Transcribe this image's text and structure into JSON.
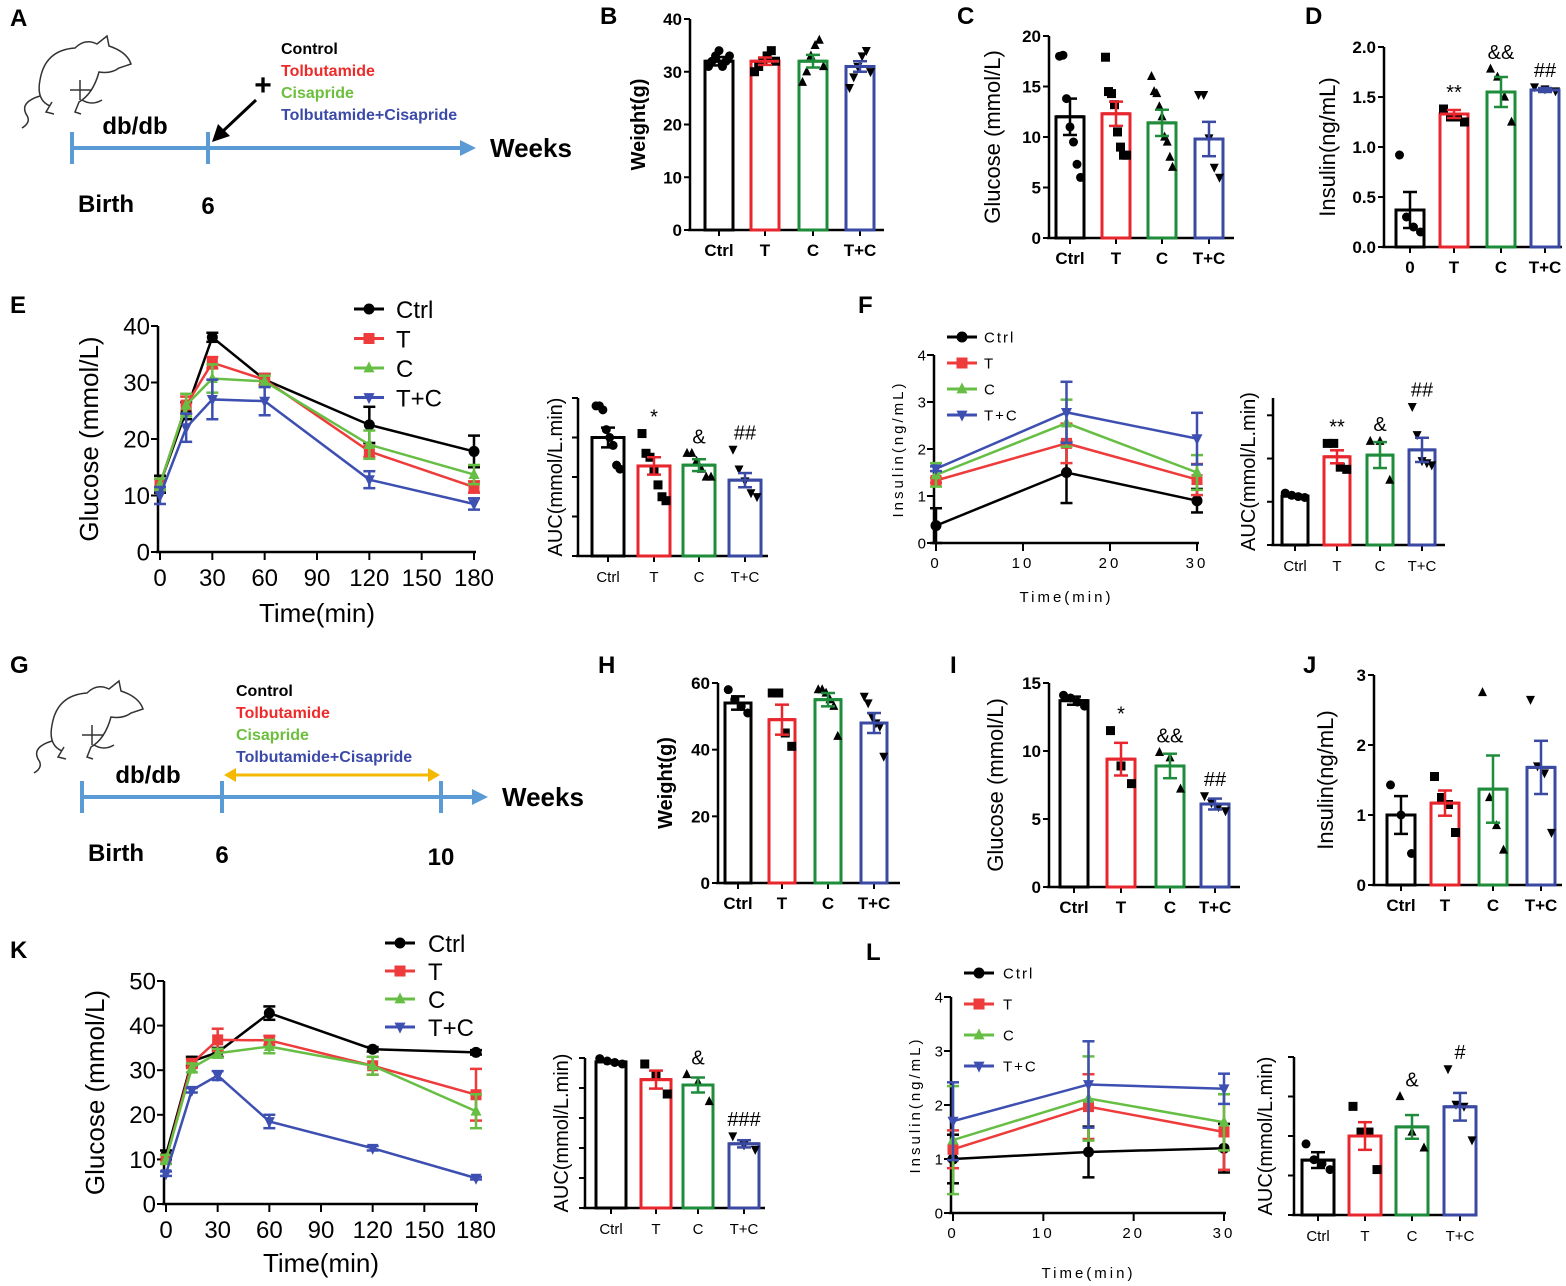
{
  "panel_labels": [
    "A",
    "B",
    "C",
    "D",
    "E",
    "F",
    "G",
    "H",
    "I",
    "J",
    "K",
    "L"
  ],
  "line_colors": {
    "Ctrl": "#000000",
    "T": "#ee3b3b",
    "C": "#66bf44",
    "T+C": "#3d4fb0"
  },
  "bar_colors": {
    "Ctrl": "#000000",
    "T": "#e8262d",
    "C": "#1e8c3a",
    "T+C": "#3a4aa3",
    "0": "#000000"
  },
  "markers": {
    "Ctrl": "circle",
    "0": "circle",
    "T": "square",
    "C": "triangle-up",
    "T+C": "triangle-down"
  },
  "timeline_colors": {
    "axis": "#5b9bd5",
    "treatment_arrow": "#f5b800"
  },
  "panel_A": {
    "stage": "db/db",
    "start": "Birth",
    "week_mark": "6",
    "axis_label": "Weeks",
    "plus": "+",
    "legend": [
      {
        "label": "Control",
        "color": "#000000"
      },
      {
        "label": "Tolbutamide",
        "color": "#ee2a2a"
      },
      {
        "label": "Cisapride",
        "color": "#6cbf3c"
      },
      {
        "label": "Tolbutamide+Cisapride",
        "color": "#3b4aa8"
      }
    ]
  },
  "panel_G": {
    "stage": "db/db",
    "start": "Birth",
    "week_mark": "6",
    "end_mark": "10",
    "axis_label": "Weeks",
    "legend": [
      {
        "label": "Control",
        "color": "#000000"
      },
      {
        "label": "Tolbutamide",
        "color": "#ee2a2a"
      },
      {
        "label": "Cisapride",
        "color": "#6cbf3c"
      },
      {
        "label": "Tolbutamide+Cisapride",
        "color": "#3b4aa8"
      }
    ]
  },
  "chart_data": [
    {
      "panel": "B",
      "type": "bar",
      "ylabel": "Weight(g)",
      "ylim": [
        0,
        40
      ],
      "yticks": [
        "0",
        "10",
        "20",
        "30",
        "40"
      ],
      "ytick_labels_shown": true,
      "categories": [
        "Ctrl",
        "T",
        "C",
        "T+C"
      ],
      "bars": [
        {
          "mean": 32,
          "sem": 0.8,
          "points": [
            31,
            32,
            33,
            34,
            31,
            32,
            33
          ],
          "annotation": ""
        },
        {
          "mean": 32,
          "sem": 0.7,
          "points": [
            30,
            31,
            32,
            33,
            34,
            32
          ],
          "annotation": ""
        },
        {
          "mean": 32,
          "sem": 1.2,
          "points": [
            28,
            30,
            33,
            35,
            36,
            31
          ],
          "annotation": ""
        },
        {
          "mean": 31,
          "sem": 1.0,
          "points": [
            27,
            29,
            31,
            33,
            34,
            30
          ],
          "annotation": ""
        }
      ]
    },
    {
      "panel": "C",
      "type": "bar",
      "ylabel": "Glucose (mmol/L)",
      "ylim": [
        0,
        20
      ],
      "yticks": [
        "0",
        "5",
        "10",
        "15",
        "20"
      ],
      "ytick_labels_shown": true,
      "categories": [
        "Ctrl",
        "T",
        "C",
        "T+C"
      ],
      "bars": [
        {
          "mean": 12,
          "sem": 1.8,
          "points": [
            18,
            18.1,
            13.8,
            11,
            9.5,
            7.3,
            6
          ],
          "annotation": ""
        },
        {
          "mean": 12.3,
          "sem": 1.2,
          "points": [
            17.9,
            14.5,
            14.3,
            13.2,
            10.5,
            9,
            8.2,
            8.2
          ],
          "annotation": ""
        },
        {
          "mean": 11.4,
          "sem": 1.3,
          "points": [
            16,
            14.5,
            14.3,
            13,
            12,
            10,
            9.5,
            8,
            7
          ],
          "annotation": ""
        },
        {
          "mean": 9.8,
          "sem": 1.7,
          "points": [
            14.2,
            14.2,
            9.9,
            7,
            6
          ],
          "annotation": ""
        }
      ]
    },
    {
      "panel": "D",
      "type": "bar",
      "ylabel": "Insulin(ng/mL)",
      "ylim": [
        0,
        2
      ],
      "yticks": [
        "0.0",
        "0.5",
        "1.0",
        "1.5",
        "2.0"
      ],
      "ytick_labels_shown": true,
      "categories": [
        "0",
        "T",
        "C",
        "T+C"
      ],
      "bars": [
        {
          "mean": 0.37,
          "sem": 0.18,
          "points": [
            0.92,
            0.3,
            0.2,
            0.15
          ],
          "annotation": ""
        },
        {
          "mean": 1.33,
          "sem": 0.04,
          "points": [
            1.38,
            1.3,
            1.3,
            1.25
          ],
          "annotation": "**"
        },
        {
          "mean": 1.55,
          "sem": 0.15,
          "points": [
            1.78,
            1.7,
            1.5,
            1.25
          ],
          "annotation": "&&"
        },
        {
          "mean": 1.57,
          "sem": 0.02,
          "points": [
            1.6,
            1.58,
            1.56
          ],
          "annotation": "##"
        }
      ]
    },
    {
      "panel": "E",
      "type": "line",
      "ylabel": "Glucose (mmol/L)",
      "xlabel": "Time(min)",
      "ylim": [
        0,
        40
      ],
      "xlim": [
        0,
        180
      ],
      "yticks": [
        "0",
        "10",
        "20",
        "30",
        "40"
      ],
      "xticks": [
        "0",
        "30",
        "60",
        "90",
        "120",
        "150",
        "180"
      ],
      "x": [
        0,
        15,
        30,
        60,
        120,
        180
      ],
      "series": [
        {
          "name": "Ctrl",
          "y": [
            12,
            25,
            38,
            30.5,
            22.5,
            17.8
          ],
          "err": [
            1.5,
            1.5,
            0.8,
            1,
            3.2,
            2.8
          ]
        },
        {
          "name": "T",
          "y": [
            12,
            26,
            33.5,
            30.5,
            17.8,
            11.5
          ],
          "err": [
            1,
            1.5,
            1,
            1,
            1,
            1
          ]
        },
        {
          "name": "C",
          "y": [
            12,
            26,
            30.7,
            30.2,
            19,
            13.7
          ],
          "err": [
            1,
            2,
            2.5,
            1,
            2.5,
            1.7
          ]
        },
        {
          "name": "T+C",
          "y": [
            10,
            22,
            27,
            26.7,
            12.8,
            8.5
          ],
          "err": [
            1.5,
            2.5,
            3.5,
            2.5,
            1.5,
            1
          ]
        }
      ]
    },
    {
      "panel": "E",
      "type": "bar",
      "ylabel": "AUC(mmol/L.min)",
      "ylim": [
        0,
        4
      ],
      "yticks": [
        "0",
        "1",
        "2",
        "3",
        "4"
      ],
      "ytick_labels_shown": false,
      "categories": [
        "Ctrl",
        "T",
        "C",
        "T+C"
      ],
      "bars": [
        {
          "mean": 3.0,
          "sem": 0.25,
          "points": [
            3.8,
            3.8,
            3.7,
            3.2,
            3.0,
            2.8,
            2.3,
            2.2
          ],
          "annotation": ""
        },
        {
          "mean": 2.28,
          "sem": 0.22,
          "points": [
            3.1,
            2.6,
            2.5,
            2.2,
            1.8,
            1.5,
            1.4
          ],
          "annotation": "*"
        },
        {
          "mean": 2.3,
          "sem": 0.15,
          "points": [
            2.6,
            2.6,
            2.4,
            2.2,
            2.0,
            2.0
          ],
          "annotation": "&"
        },
        {
          "mean": 1.92,
          "sem": 0.18,
          "points": [
            2.7,
            2.2,
            1.9,
            1.6,
            1.5
          ],
          "annotation": "##"
        }
      ]
    },
    {
      "panel": "F",
      "type": "line",
      "ylabel": "Insulin(ng/mL)",
      "xlabel": "Time(min)",
      "ylim": [
        0,
        4
      ],
      "xlim": [
        0,
        30
      ],
      "yticks": [
        "0",
        "1",
        "2",
        "3",
        "4"
      ],
      "xticks": [
        "0",
        "10",
        "20",
        "30"
      ],
      "x": [
        0,
        15,
        30
      ],
      "series": [
        {
          "name": "Ctrl",
          "y": [
            0.37,
            1.5,
            0.9
          ],
          "err": [
            0.37,
            0.65,
            0.25
          ]
        },
        {
          "name": "T",
          "y": [
            1.33,
            2.12,
            1.35
          ],
          "err": [
            0.05,
            0.42,
            0.33
          ]
        },
        {
          "name": "C",
          "y": [
            1.45,
            2.55,
            1.5
          ],
          "err": [
            0.25,
            0.5,
            0.37
          ]
        },
        {
          "name": "T+C",
          "y": [
            1.58,
            2.78,
            2.22
          ],
          "err": [
            0.05,
            0.65,
            0.55
          ]
        }
      ]
    },
    {
      "panel": "F",
      "type": "bar",
      "ylabel": "AUC(mmol/L.min)",
      "ylim": [
        0,
        3.4
      ],
      "yticks": [
        "0",
        "1",
        "2",
        "3"
      ],
      "ytick_labels_shown": false,
      "categories": [
        "Ctrl",
        "T",
        "C",
        "T+C"
      ],
      "bars": [
        {
          "mean": 1.13,
          "sem": 0.03,
          "points": [
            1.2,
            1.15,
            1.12,
            1.1
          ],
          "annotation": ""
        },
        {
          "mean": 2.04,
          "sem": 0.15,
          "points": [
            2.35,
            2.35,
            1.8,
            1.75
          ],
          "annotation": "**"
        },
        {
          "mean": 2.08,
          "sem": 0.3,
          "points": [
            2.4,
            2.4,
            1.5
          ],
          "annotation": "&"
        },
        {
          "mean": 2.2,
          "sem": 0.28,
          "points": [
            3.2,
            2.55,
            1.95,
            1.9,
            1.85
          ],
          "annotation": "##"
        }
      ]
    },
    {
      "panel": "H",
      "type": "bar",
      "ylabel": "Weight(g)",
      "ylim": [
        0,
        60
      ],
      "yticks": [
        "0",
        "20",
        "40",
        "60"
      ],
      "ytick_labels_shown": true,
      "categories": [
        "Ctrl",
        "T",
        "C",
        "T+C"
      ],
      "bars": [
        {
          "mean": 54,
          "sem": 2,
          "points": [
            58,
            55,
            53,
            51
          ],
          "annotation": ""
        },
        {
          "mean": 49,
          "sem": 4.5,
          "points": [
            57,
            57,
            45,
            41
          ],
          "annotation": ""
        },
        {
          "mean": 55,
          "sem": 2,
          "points": [
            58,
            58,
            57,
            55,
            53,
            44
          ],
          "annotation": ""
        },
        {
          "mean": 48,
          "sem": 3,
          "points": [
            56,
            54,
            50,
            48,
            47,
            38
          ],
          "annotation": ""
        }
      ]
    },
    {
      "panel": "I",
      "type": "bar",
      "ylabel": "Glucose (mmol/L)",
      "ylim": [
        0,
        15
      ],
      "yticks": [
        "0",
        "5",
        "10",
        "15"
      ],
      "ytick_labels_shown": true,
      "categories": [
        "Ctrl",
        "T",
        "C",
        "T+C"
      ],
      "bars": [
        {
          "mean": 13.7,
          "sem": 0.3,
          "points": [
            14.1,
            13.9,
            13.6,
            13.3
          ],
          "annotation": ""
        },
        {
          "mean": 9.4,
          "sem": 1.2,
          "points": [
            11.5,
            8.9,
            7.6
          ],
          "annotation": "*"
        },
        {
          "mean": 8.9,
          "sem": 0.9,
          "points": [
            9.9,
            9.5,
            7.2
          ],
          "annotation": "&&"
        },
        {
          "mean": 6.1,
          "sem": 0.4,
          "points": [
            6.7,
            6.2,
            5.9,
            5.6
          ],
          "annotation": "##"
        }
      ]
    },
    {
      "panel": "J",
      "type": "bar",
      "ylabel": "Insulin(ng/mL)",
      "ylim": [
        0,
        3
      ],
      "yticks": [
        "0",
        "1",
        "2",
        "3"
      ],
      "ytick_labels_shown": true,
      "categories": [
        "Ctrl",
        "T",
        "C",
        "T+C"
      ],
      "bars": [
        {
          "mean": 1.0,
          "sem": 0.27,
          "points": [
            1.43,
            1.0,
            0.45
          ],
          "annotation": ""
        },
        {
          "mean": 1.17,
          "sem": 0.18,
          "points": [
            1.55,
            1.25,
            1.15,
            0.75
          ],
          "annotation": ""
        },
        {
          "mean": 1.37,
          "sem": 0.48,
          "points": [
            2.75,
            1.25,
            0.85,
            0.5
          ],
          "annotation": ""
        },
        {
          "mean": 1.68,
          "sem": 0.38,
          "points": [
            2.65,
            1.7,
            1.6,
            0.75
          ],
          "annotation": ""
        }
      ]
    },
    {
      "panel": "K",
      "type": "line",
      "ylabel": "Glucose (mmol/L)",
      "xlabel": "Time(min)",
      "ylim": [
        0,
        50
      ],
      "xlim": [
        0,
        180
      ],
      "yticks": [
        "0",
        "10",
        "20",
        "30",
        "40",
        "50"
      ],
      "xticks": [
        "0",
        "30",
        "60",
        "90",
        "120",
        "150",
        "180"
      ],
      "x": [
        0,
        15,
        30,
        60,
        120,
        180
      ],
      "series": [
        {
          "name": "Ctrl",
          "y": [
            11,
            32,
            34,
            42.8,
            34.7,
            34
          ],
          "err": [
            1,
            1,
            1,
            1.5,
            0.5,
            0.5
          ]
        },
        {
          "name": "T",
          "y": [
            10,
            31.5,
            36.8,
            36.7,
            31,
            24.5
          ],
          "err": [
            1,
            1,
            2.5,
            1,
            2,
            5.8
          ]
        },
        {
          "name": "C",
          "y": [
            10,
            30.5,
            33.8,
            35.3,
            31,
            20.8
          ],
          "err": [
            1,
            1,
            1,
            1.5,
            2,
            3.8
          ]
        },
        {
          "name": "T+C",
          "y": [
            6.8,
            25.5,
            28.8,
            18.5,
            12.5,
            5.8
          ],
          "err": [
            0.5,
            0.5,
            1,
            1.5,
            0.5,
            0.3
          ]
        }
      ]
    },
    {
      "panel": "K",
      "type": "bar",
      "ylabel": "AUC(mmol/L.min)",
      "ylim": [
        0,
        5
      ],
      "yticks": [
        "0",
        "1",
        "2",
        "3",
        "4",
        "5"
      ],
      "ytick_labels_shown": false,
      "categories": [
        "Ctrl",
        "T",
        "C",
        "T+C"
      ],
      "bars": [
        {
          "mean": 4.87,
          "sem": 0.05,
          "points": [
            4.98,
            4.9,
            4.85,
            4.8
          ],
          "annotation": ""
        },
        {
          "mean": 4.28,
          "sem": 0.3,
          "points": [
            4.8,
            4.4,
            3.8
          ],
          "annotation": ""
        },
        {
          "mean": 4.1,
          "sem": 0.25,
          "points": [
            4.45,
            4.2,
            3.55
          ],
          "annotation": "&"
        },
        {
          "mean": 2.14,
          "sem": 0.12,
          "points": [
            2.4,
            2.1,
            1.95
          ],
          "annotation": "###"
        }
      ]
    },
    {
      "panel": "L",
      "type": "line",
      "ylabel": "Insulin(ng/mL)",
      "xlabel": "Time(min)",
      "ylim": [
        0,
        4
      ],
      "xlim": [
        0,
        30
      ],
      "yticks": [
        "0",
        "1",
        "2",
        "3",
        "4"
      ],
      "xticks": [
        "0",
        "10",
        "20",
        "30"
      ],
      "x": [
        0,
        15,
        30
      ],
      "series": [
        {
          "name": "Ctrl",
          "y": [
            1.0,
            1.13,
            1.2
          ],
          "err": [
            0.45,
            0.47,
            0.45
          ]
        },
        {
          "name": "T",
          "y": [
            1.18,
            1.97,
            1.5
          ],
          "err": [
            0.35,
            0.6,
            0.7
          ]
        },
        {
          "name": "C",
          "y": [
            1.35,
            2.12,
            1.68
          ],
          "err": [
            1.0,
            0.78,
            0.52
          ]
        },
        {
          "name": "T+C",
          "y": [
            1.7,
            2.38,
            2.3
          ],
          "err": [
            0.72,
            0.8,
            0.28
          ]
        }
      ]
    },
    {
      "panel": "L",
      "type": "bar",
      "ylabel": "AUC(mmol/L.min)",
      "ylim": [
        0,
        4
      ],
      "yticks": [
        "0",
        "1",
        "2",
        "3",
        "4"
      ],
      "ytick_labels_shown": false,
      "categories": [
        "Ctrl",
        "T",
        "C",
        "T+C"
      ],
      "bars": [
        {
          "mean": 1.39,
          "sem": 0.2,
          "points": [
            1.8,
            1.4,
            1.3,
            1.15
          ],
          "annotation": ""
        },
        {
          "mean": 2.0,
          "sem": 0.35,
          "points": [
            2.75,
            2.1,
            2.1,
            1.15
          ],
          "annotation": ""
        },
        {
          "mean": 2.23,
          "sem": 0.3,
          "points": [
            3.0,
            2.1,
            1.7
          ],
          "annotation": "&"
        },
        {
          "mean": 2.74,
          "sem": 0.35,
          "points": [
            3.7,
            2.8,
            2.75,
            1.9
          ],
          "annotation": "#"
        }
      ]
    }
  ]
}
